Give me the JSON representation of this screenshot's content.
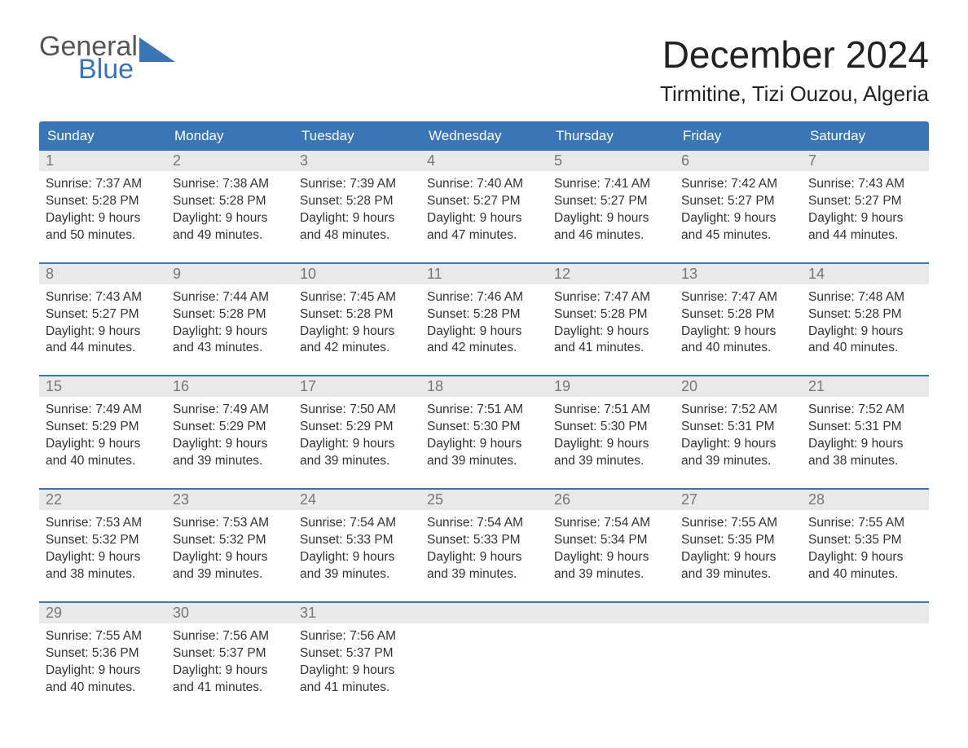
{
  "logo": {
    "word1": "General",
    "word2": "Blue",
    "word1_color": "#555555",
    "word2_color": "#3a76b6",
    "triangle_color": "#3a76b6"
  },
  "title": "December 2024",
  "location": "Tirmitine, Tizi Ouzou, Algeria",
  "colors": {
    "header_bg": "#3a76b6",
    "header_text": "#ffffff",
    "daynum_bg": "#e9e9e9",
    "daynum_text": "#777777",
    "body_text": "#333333",
    "row_divider": "#3a76b6",
    "page_bg": "#ffffff"
  },
  "fonts": {
    "title_size_pt": 34,
    "location_size_pt": 20,
    "header_size_pt": 13,
    "body_size_pt": 11.5
  },
  "day_headers": [
    "Sunday",
    "Monday",
    "Tuesday",
    "Wednesday",
    "Thursday",
    "Friday",
    "Saturday"
  ],
  "labels": {
    "sunrise": "Sunrise:",
    "sunset": "Sunset:",
    "daylight_prefix": "Daylight:",
    "hours_word": "hours",
    "minutes_suffix": "minutes.",
    "and": "and"
  },
  "weeks": [
    [
      {
        "n": "1",
        "sunrise": "7:37 AM",
        "sunset": "5:28 PM",
        "dh": "9",
        "dm": "50"
      },
      {
        "n": "2",
        "sunrise": "7:38 AM",
        "sunset": "5:28 PM",
        "dh": "9",
        "dm": "49"
      },
      {
        "n": "3",
        "sunrise": "7:39 AM",
        "sunset": "5:28 PM",
        "dh": "9",
        "dm": "48"
      },
      {
        "n": "4",
        "sunrise": "7:40 AM",
        "sunset": "5:27 PM",
        "dh": "9",
        "dm": "47"
      },
      {
        "n": "5",
        "sunrise": "7:41 AM",
        "sunset": "5:27 PM",
        "dh": "9",
        "dm": "46"
      },
      {
        "n": "6",
        "sunrise": "7:42 AM",
        "sunset": "5:27 PM",
        "dh": "9",
        "dm": "45"
      },
      {
        "n": "7",
        "sunrise": "7:43 AM",
        "sunset": "5:27 PM",
        "dh": "9",
        "dm": "44"
      }
    ],
    [
      {
        "n": "8",
        "sunrise": "7:43 AM",
        "sunset": "5:27 PM",
        "dh": "9",
        "dm": "44"
      },
      {
        "n": "9",
        "sunrise": "7:44 AM",
        "sunset": "5:28 PM",
        "dh": "9",
        "dm": "43"
      },
      {
        "n": "10",
        "sunrise": "7:45 AM",
        "sunset": "5:28 PM",
        "dh": "9",
        "dm": "42"
      },
      {
        "n": "11",
        "sunrise": "7:46 AM",
        "sunset": "5:28 PM",
        "dh": "9",
        "dm": "42"
      },
      {
        "n": "12",
        "sunrise": "7:47 AM",
        "sunset": "5:28 PM",
        "dh": "9",
        "dm": "41"
      },
      {
        "n": "13",
        "sunrise": "7:47 AM",
        "sunset": "5:28 PM",
        "dh": "9",
        "dm": "40"
      },
      {
        "n": "14",
        "sunrise": "7:48 AM",
        "sunset": "5:28 PM",
        "dh": "9",
        "dm": "40"
      }
    ],
    [
      {
        "n": "15",
        "sunrise": "7:49 AM",
        "sunset": "5:29 PM",
        "dh": "9",
        "dm": "40"
      },
      {
        "n": "16",
        "sunrise": "7:49 AM",
        "sunset": "5:29 PM",
        "dh": "9",
        "dm": "39"
      },
      {
        "n": "17",
        "sunrise": "7:50 AM",
        "sunset": "5:29 PM",
        "dh": "9",
        "dm": "39"
      },
      {
        "n": "18",
        "sunrise": "7:51 AM",
        "sunset": "5:30 PM",
        "dh": "9",
        "dm": "39"
      },
      {
        "n": "19",
        "sunrise": "7:51 AM",
        "sunset": "5:30 PM",
        "dh": "9",
        "dm": "39"
      },
      {
        "n": "20",
        "sunrise": "7:52 AM",
        "sunset": "5:31 PM",
        "dh": "9",
        "dm": "39"
      },
      {
        "n": "21",
        "sunrise": "7:52 AM",
        "sunset": "5:31 PM",
        "dh": "9",
        "dm": "38"
      }
    ],
    [
      {
        "n": "22",
        "sunrise": "7:53 AM",
        "sunset": "5:32 PM",
        "dh": "9",
        "dm": "38"
      },
      {
        "n": "23",
        "sunrise": "7:53 AM",
        "sunset": "5:32 PM",
        "dh": "9",
        "dm": "39"
      },
      {
        "n": "24",
        "sunrise": "7:54 AM",
        "sunset": "5:33 PM",
        "dh": "9",
        "dm": "39"
      },
      {
        "n": "25",
        "sunrise": "7:54 AM",
        "sunset": "5:33 PM",
        "dh": "9",
        "dm": "39"
      },
      {
        "n": "26",
        "sunrise": "7:54 AM",
        "sunset": "5:34 PM",
        "dh": "9",
        "dm": "39"
      },
      {
        "n": "27",
        "sunrise": "7:55 AM",
        "sunset": "5:35 PM",
        "dh": "9",
        "dm": "39"
      },
      {
        "n": "28",
        "sunrise": "7:55 AM",
        "sunset": "5:35 PM",
        "dh": "9",
        "dm": "40"
      }
    ],
    [
      {
        "n": "29",
        "sunrise": "7:55 AM",
        "sunset": "5:36 PM",
        "dh": "9",
        "dm": "40"
      },
      {
        "n": "30",
        "sunrise": "7:56 AM",
        "sunset": "5:37 PM",
        "dh": "9",
        "dm": "41"
      },
      {
        "n": "31",
        "sunrise": "7:56 AM",
        "sunset": "5:37 PM",
        "dh": "9",
        "dm": "41"
      },
      null,
      null,
      null,
      null
    ]
  ]
}
